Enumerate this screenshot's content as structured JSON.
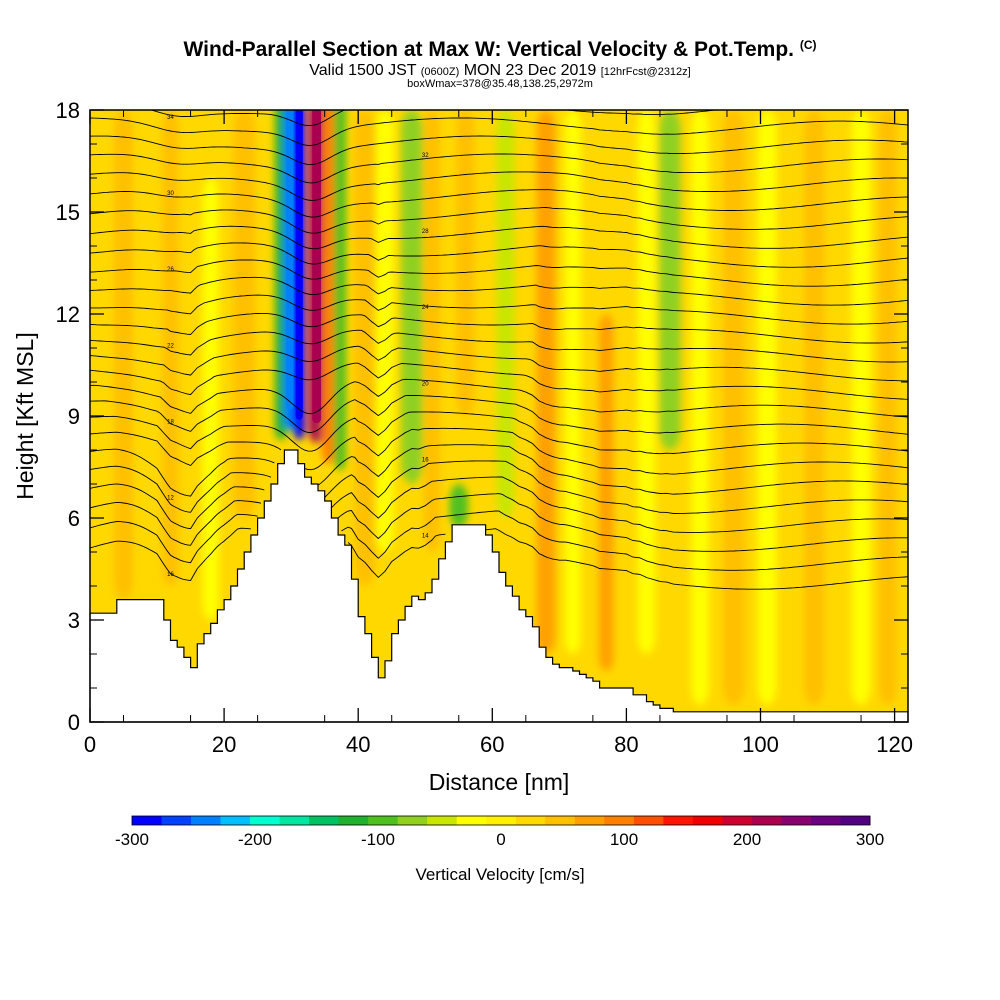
{
  "header": {
    "title": "Wind-Parallel Section at Max W: Vertical Velocity & Pot.Temp.",
    "copyright": "(C)",
    "valid_prefix": "Valid 1500 JST",
    "valid_utc": "(0600Z)",
    "valid_date": "MON 23 Dec 2019",
    "forecast": "[12hrFcst@2312z]",
    "subtitle": "boxWmax=378@35.48,138.25,2972m"
  },
  "chart_data": {
    "type": "heatmap",
    "xlabel": "Distance [nm]",
    "ylabel": "Height [Kft MSL]",
    "xlim": [
      0,
      122
    ],
    "ylim": [
      0,
      18
    ],
    "x_ticks": [
      "0",
      "20",
      "40",
      "60",
      "80",
      "100",
      "120"
    ],
    "y_ticks": [
      "0",
      "3",
      "6",
      "9",
      "12",
      "15",
      "18"
    ],
    "colorbar": {
      "label": "Vertical Velocity [cm/s]",
      "range": [
        -300,
        300
      ],
      "ticks": [
        "-300",
        "-200",
        "-100",
        "0",
        "100",
        "200",
        "300"
      ],
      "colors": [
        "#0000ff",
        "#0040ff",
        "#0080ff",
        "#00bfff",
        "#00ffd0",
        "#00e6a0",
        "#00c060",
        "#20b030",
        "#50c020",
        "#90d020",
        "#c8e600",
        "#ffff00",
        "#fff000",
        "#ffd800",
        "#ffc000",
        "#ffa000",
        "#ff8000",
        "#ff5000",
        "#ff1500",
        "#ee0000",
        "#cc0030",
        "#aa0050",
        "#880070",
        "#6a0080",
        "#500080"
      ]
    },
    "background_w": 20,
    "w_features": [
      {
        "x": 5,
        "top": 18,
        "bottom": 3.6,
        "half_width": 1.4,
        "w": 45
      },
      {
        "x": 12,
        "top": 18,
        "bottom": 4,
        "half_width": 1.2,
        "w": 40
      },
      {
        "x": 18,
        "top": 16,
        "bottom": 3,
        "half_width": 1.2,
        "w": -20
      },
      {
        "x": 23,
        "top": 18,
        "bottom": 6,
        "half_width": 1.6,
        "w": 40
      },
      {
        "x": 28.5,
        "top": 18.3,
        "bottom": 8.3,
        "half_width": 0.9,
        "w": -120
      },
      {
        "x": 29.8,
        "top": 18.3,
        "bottom": 8.6,
        "half_width": 0.9,
        "w": -230
      },
      {
        "x": 31.2,
        "top": 18.3,
        "bottom": 8.3,
        "half_width": 0.9,
        "w": -300
      },
      {
        "x": 33.8,
        "top": 18.3,
        "bottom": 8.2,
        "half_width": 1.1,
        "w": 220
      },
      {
        "x": 35.6,
        "top": 18.3,
        "bottom": 7.6,
        "half_width": 1.0,
        "w": 100
      },
      {
        "x": 37.3,
        "top": 18.3,
        "bottom": 7.4,
        "half_width": 0.9,
        "w": -90
      },
      {
        "x": 41,
        "top": 18,
        "bottom": 4,
        "half_width": 1.5,
        "w": 45
      },
      {
        "x": 44,
        "top": 18,
        "bottom": 5,
        "half_width": 1.3,
        "w": -30
      },
      {
        "x": 48,
        "top": 18,
        "bottom": 7,
        "half_width": 1.6,
        "w": -80
      },
      {
        "x": 51,
        "top": 18,
        "bottom": 5,
        "half_width": 1.2,
        "w": 40
      },
      {
        "x": 55,
        "top": 7,
        "bottom": 5.7,
        "half_width": 1.4,
        "w": -100
      },
      {
        "x": 56,
        "top": 18,
        "bottom": 9,
        "half_width": 1.3,
        "w": 40
      },
      {
        "x": 62,
        "top": 18,
        "bottom": 6,
        "half_width": 1.3,
        "w": -40
      },
      {
        "x": 68,
        "top": 18,
        "bottom": 2,
        "half_width": 1.4,
        "w": 60
      },
      {
        "x": 72,
        "top": 18,
        "bottom": 2,
        "half_width": 1.2,
        "w": -30
      },
      {
        "x": 77,
        "top": 12,
        "bottom": 1.5,
        "half_width": 1.1,
        "w": 70
      },
      {
        "x": 83,
        "top": 18,
        "bottom": 2,
        "half_width": 1.3,
        "w": -30
      },
      {
        "x": 86.5,
        "top": 18,
        "bottom": 8,
        "half_width": 1.6,
        "w": -70
      },
      {
        "x": 91,
        "top": 18,
        "bottom": 0.5,
        "half_width": 1.3,
        "w": -20
      },
      {
        "x": 96,
        "top": 18,
        "bottom": 0.5,
        "half_width": 1.6,
        "w": 45
      },
      {
        "x": 101,
        "top": 18,
        "bottom": 0.5,
        "half_width": 1.4,
        "w": -25
      },
      {
        "x": 108,
        "top": 18,
        "bottom": 0.5,
        "half_width": 1.5,
        "w": 50
      },
      {
        "x": 115,
        "top": 18,
        "bottom": 0.5,
        "half_width": 1.4,
        "w": -20
      },
      {
        "x": 119,
        "top": 18,
        "bottom": 0.5,
        "half_width": 1.3,
        "w": 40
      }
    ],
    "terrain": {
      "x": [
        0,
        4,
        10,
        11,
        12,
        13,
        14,
        15,
        16,
        17,
        18,
        19,
        20,
        21,
        22,
        23,
        24,
        25,
        26,
        27,
        28,
        29,
        30,
        31,
        32,
        33,
        34,
        35,
        36,
        37,
        38,
        39,
        40,
        41,
        42,
        43,
        44,
        45,
        46,
        47,
        48,
        49,
        50,
        51,
        52,
        53,
        54,
        55,
        56,
        57,
        58,
        59,
        60,
        61,
        62,
        63,
        64,
        65,
        66,
        67,
        68,
        69,
        70,
        71,
        72,
        73,
        74,
        75,
        76,
        77,
        78,
        79,
        80,
        81,
        82,
        83,
        84,
        85,
        86,
        87,
        88,
        90,
        95,
        100,
        105,
        110,
        115,
        120,
        122
      ],
      "h": [
        3.2,
        3.6,
        3.6,
        3.0,
        2.4,
        2.2,
        1.9,
        1.6,
        2.3,
        2.6,
        2.9,
        3.3,
        3.6,
        4.0,
        4.5,
        5.0,
        5.5,
        6.0,
        6.5,
        7.0,
        7.6,
        8.0,
        8.0,
        7.6,
        7.2,
        7.0,
        6.8,
        6.5,
        6.0,
        5.5,
        5.2,
        4.2,
        3.1,
        2.6,
        1.9,
        1.3,
        1.8,
        2.6,
        3.0,
        3.4,
        3.7,
        3.6,
        3.8,
        4.2,
        4.8,
        5.3,
        5.8,
        5.8,
        5.8,
        5.8,
        5.8,
        5.5,
        5.0,
        4.4,
        4.0,
        3.7,
        3.3,
        3.1,
        2.8,
        2.2,
        1.9,
        1.7,
        1.6,
        1.6,
        1.5,
        1.4,
        1.3,
        1.2,
        1.0,
        1.0,
        1.0,
        1.0,
        1.0,
        0.8,
        0.8,
        0.6,
        0.5,
        0.4,
        0.4,
        0.3,
        0.3,
        0.3,
        0.3,
        0.3,
        0.3,
        0.3,
        0.3,
        0.3,
        0.3
      ]
    },
    "isentropes": {
      "count": 29,
      "visible_labels": [
        "16",
        "14",
        "12",
        "16",
        "18",
        "20",
        "22",
        "24",
        "26",
        "28",
        "30",
        "32",
        "34"
      ]
    }
  }
}
